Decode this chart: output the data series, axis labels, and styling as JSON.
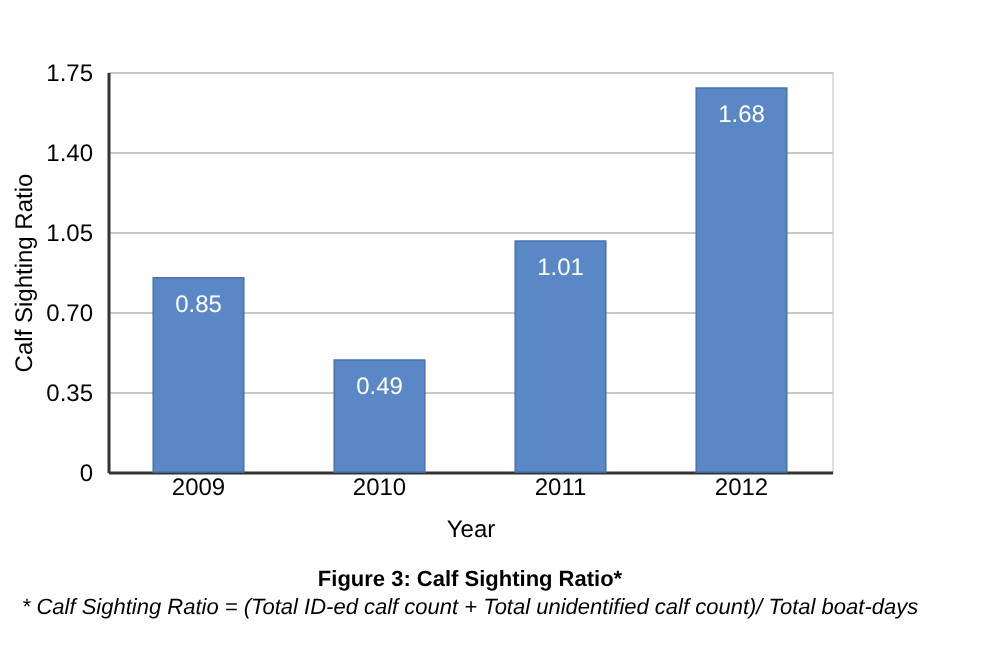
{
  "chart_data": {
    "type": "bar",
    "title": "Figure 3: Calf Sighting Ratio*",
    "xlabel": "Year",
    "ylabel": "Calf Sighting Ratio",
    "categories": [
      "2009",
      "2010",
      "2011",
      "2012"
    ],
    "values": [
      0.85,
      0.49,
      1.01,
      1.68
    ],
    "color": "#5a87c5",
    "ylim": [
      0,
      1.75
    ],
    "yticks": [
      0,
      0.35,
      {
        "value": 0.7,
        "label": "0.70"
      },
      1.05,
      {
        "value": 1.4,
        "label": "1.40"
      },
      1.75
    ],
    "grid": "y",
    "data_labels": true,
    "annotations": [
      "* Calf Sighting Ratio = (Total ID-ed calf count + Total unidentified calf count)/ Total boat-days"
    ]
  }
}
